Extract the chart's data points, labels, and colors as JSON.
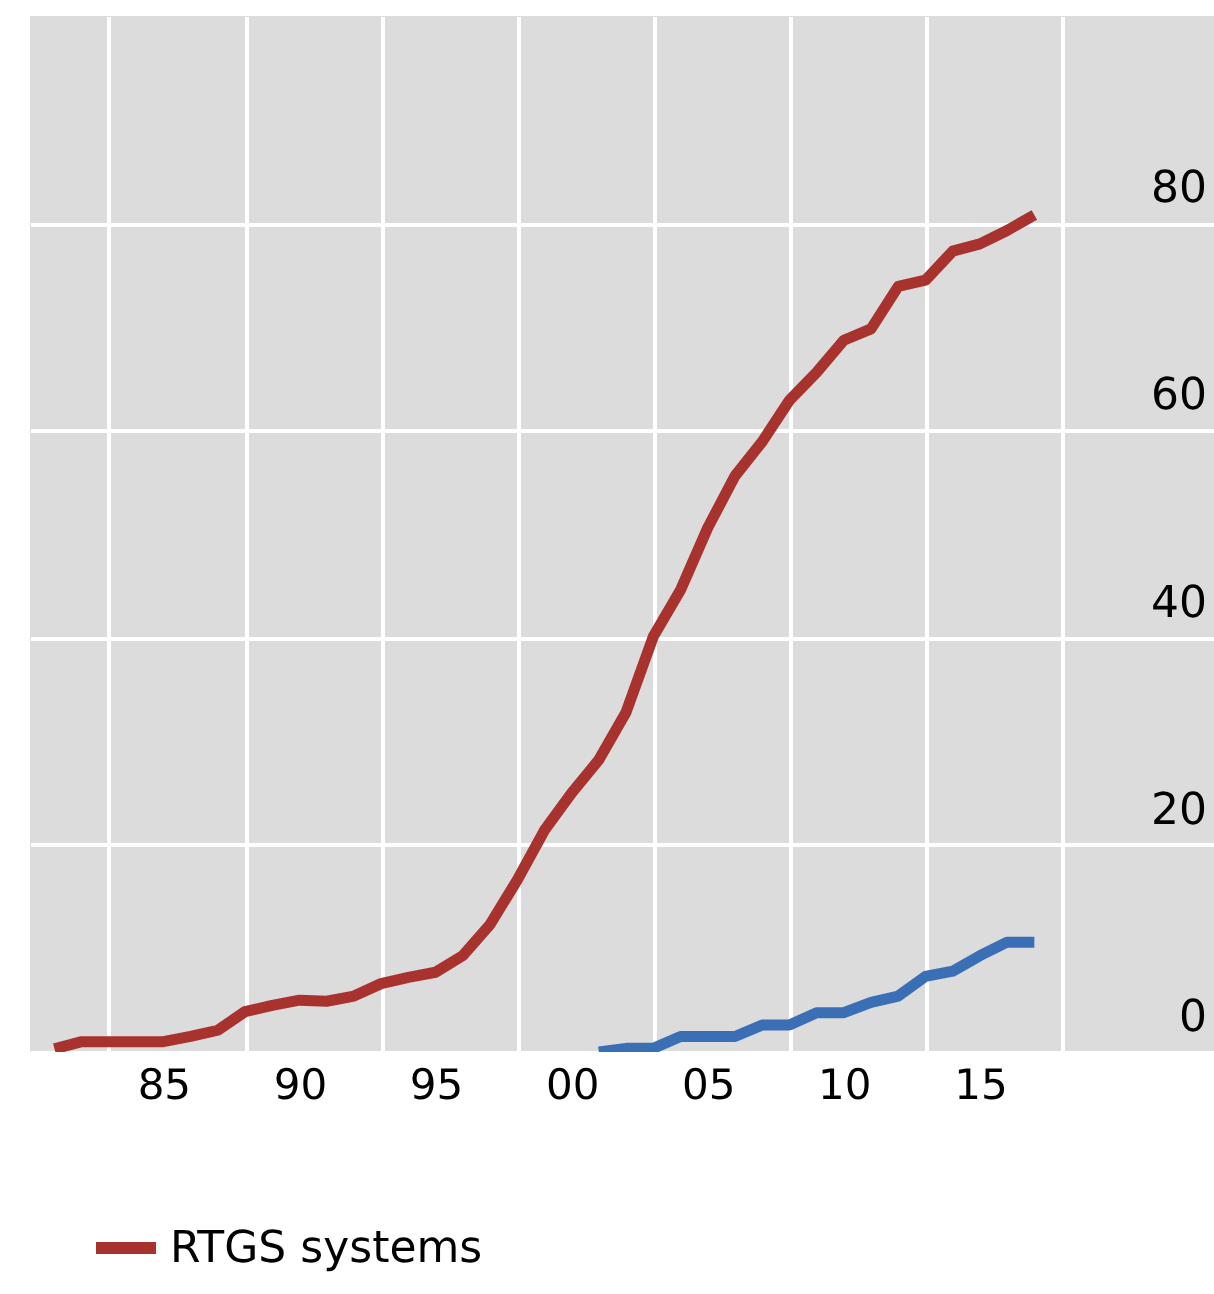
{
  "chart_data": {
    "type": "line",
    "xlim": [
      1980.1,
      2023.6
    ],
    "xticks": [
      {
        "value": 1983,
        "label": null
      },
      {
        "value": 1988,
        "label": null
      },
      {
        "value": 1993,
        "label": null
      },
      {
        "value": 1998,
        "label": null
      },
      {
        "value": 2003,
        "label": null
      },
      {
        "value": 2008,
        "label": null
      },
      {
        "value": 2013,
        "label": null
      },
      {
        "value": 2018,
        "label": null
      },
      {
        "value": 1985,
        "label": "85"
      },
      {
        "value": 1990,
        "label": "90"
      },
      {
        "value": 1995,
        "label": "95"
      },
      {
        "value": 2000,
        "label": "00"
      },
      {
        "value": 2005,
        "label": "05"
      },
      {
        "value": 2010,
        "label": "10"
      },
      {
        "value": 2015,
        "label": "15"
      }
    ],
    "ylim": [
      0,
      100
    ],
    "yticks": [
      0,
      20,
      40,
      60,
      80
    ],
    "grid": true,
    "legend": "bottom left",
    "line_style": "solid",
    "series": [
      {
        "name": "RTGS systems",
        "color": "#a8322d",
        "x": [
          1981,
          1982,
          1983,
          1984,
          1985,
          1986,
          1987,
          1988,
          1989,
          1990,
          1991,
          1992,
          1993,
          1994,
          1995,
          1996,
          1997,
          1998,
          1999,
          2000,
          2001,
          2002,
          2003,
          2004,
          2005,
          2006,
          2007,
          2008,
          2009,
          2010,
          2011,
          2012,
          2013,
          2014,
          2015,
          2016,
          2017
        ],
        "values": [
          0.3,
          1,
          1,
          1,
          1,
          1.5,
          2.1,
          3.9,
          4.5,
          5,
          4.9,
          5.4,
          6.6,
          7.2,
          7.7,
          9.3,
          12.3,
          16.6,
          21.4,
          25,
          28.2,
          32.8,
          40.1,
          44.6,
          50.6,
          55.6,
          58.9,
          62.9,
          65.6,
          68.7,
          69.8,
          73.9,
          74.5,
          77.3,
          78,
          79.3,
          80.8
        ]
      },
      {
        "color": "#3a6fb5",
        "x": [
          2001,
          2002,
          2003,
          2004,
          2005,
          2006,
          2007,
          2008,
          2009,
          2010,
          2011,
          2012,
          2013,
          2014,
          2015,
          2016,
          2017
        ],
        "values": [
          0,
          0.35,
          0.35,
          1.5,
          1.5,
          1.5,
          2.6,
          2.6,
          3.8,
          3.8,
          4.8,
          5.4,
          7.3,
          7.8,
          9.3,
          10.6,
          10.6
        ]
      }
    ]
  }
}
